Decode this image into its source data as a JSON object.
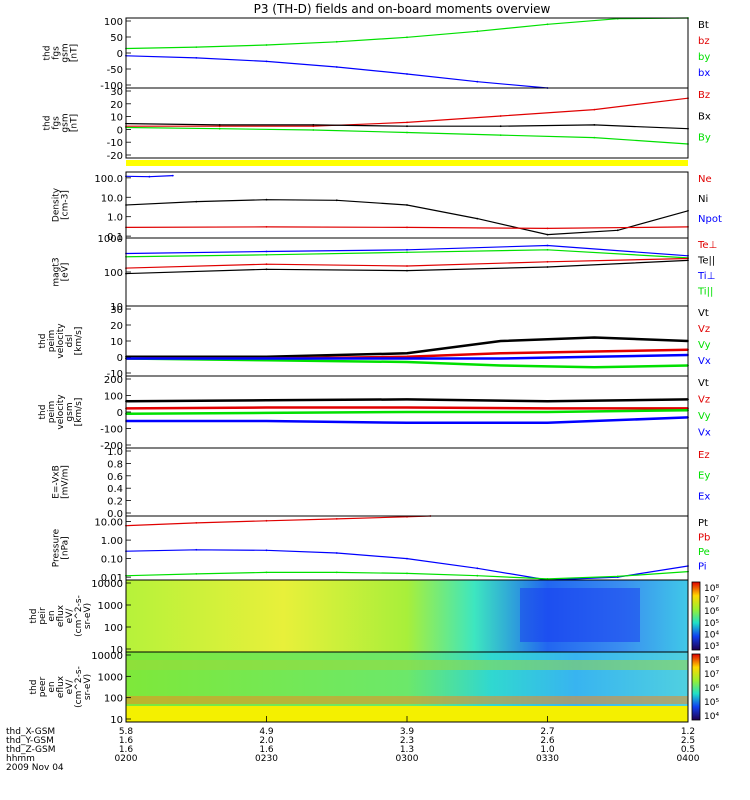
{
  "title": "P3 (TH-D) fields and on-board moments overview",
  "colors": {
    "black": "#000000",
    "red": "#e00000",
    "green": "#00e000",
    "blue": "#0000ff",
    "yellow": "#ffff00"
  },
  "chart_data": [
    {
      "id": "fgs-gse",
      "type": "line",
      "ylabel_lines": [
        "thd",
        "fgs",
        "gsm",
        "[nT]"
      ],
      "ylim": [
        -100,
        100
      ],
      "yticks": [
        "100",
        "50",
        "0",
        "-50",
        "-100"
      ],
      "legend": [
        {
          "label": "Bt",
          "color": "#000000"
        },
        {
          "label": "bz",
          "color": "#e00000"
        },
        {
          "label": "by",
          "color": "#00e000"
        },
        {
          "label": "bx",
          "color": "#0000ff"
        }
      ],
      "series": [
        {
          "name": "by",
          "color": "#00e000",
          "x": [
            "02:00",
            "02:15",
            "02:30",
            "02:45",
            "03:00",
            "03:15",
            "03:30",
            "03:45",
            "04:00"
          ],
          "values": [
            13,
            17,
            23,
            32,
            45,
            62,
            82,
            98,
            104
          ]
        },
        {
          "name": "bx",
          "color": "#0000ff",
          "x": [
            "02:00",
            "02:15",
            "02:30",
            "02:45",
            "03:00",
            "03:15",
            "03:30"
          ],
          "values": [
            -8,
            -14,
            -24,
            -40,
            -60,
            -82,
            -100
          ]
        }
      ]
    },
    {
      "id": "fgs-gsm",
      "type": "line",
      "ylabel_lines": [
        "thd",
        "fgs",
        "gsm",
        "[nT]"
      ],
      "ylim": [
        -25,
        30
      ],
      "yticks": [
        "30",
        "20",
        "10",
        "0",
        "-10",
        "-20"
      ],
      "legend": [
        {
          "label": "Bz",
          "color": "#e00000"
        },
        {
          "label": "Bx",
          "color": "#000000"
        },
        {
          "label": "By",
          "color": "#00e000"
        }
      ],
      "series": [
        {
          "name": "Bz",
          "color": "#e00000",
          "x": [
            "02:00",
            "02:20",
            "02:40",
            "03:00",
            "03:20",
            "03:40",
            "04:00"
          ],
          "values": [
            0,
            0,
            0,
            3,
            8,
            13,
            22
          ]
        },
        {
          "name": "Bx",
          "color": "#000000",
          "x": [
            "02:00",
            "02:20",
            "02:40",
            "03:00",
            "03:20",
            "03:40",
            "04:00"
          ],
          "values": [
            2,
            1,
            1,
            0,
            0,
            1,
            -2
          ]
        },
        {
          "name": "By",
          "color": "#00e000",
          "x": [
            "02:00",
            "02:20",
            "02:40",
            "03:00",
            "03:20",
            "03:40",
            "04:00"
          ],
          "values": [
            -1,
            -2,
            -3,
            -5,
            -7,
            -9,
            -14
          ]
        }
      ]
    },
    {
      "id": "density",
      "type": "line",
      "scale": "log",
      "ylabel_lines": [
        "Density",
        "[cm-3]"
      ],
      "ylim": [
        0.08,
        200
      ],
      "yticks": [
        "100.0",
        "10.0",
        "1.0",
        "0.1"
      ],
      "ytick_values": [
        100,
        10,
        1,
        0.1
      ],
      "legend": [
        {
          "label": "Ne",
          "color": "#e00000"
        },
        {
          "label": "Ni",
          "color": "#000000"
        },
        {
          "label": "Npot",
          "color": "#0000ff"
        }
      ],
      "series": [
        {
          "name": "Ni",
          "color": "#000000",
          "x": [
            "02:00",
            "02:15",
            "02:30",
            "02:45",
            "03:00",
            "03:15",
            "03:30",
            "03:45",
            "04:00"
          ],
          "values": [
            4,
            6,
            7.5,
            7,
            4,
            0.8,
            0.12,
            0.2,
            2
          ]
        },
        {
          "name": "Ne",
          "color": "#e00000",
          "x": [
            "02:00",
            "02:30",
            "03:00",
            "03:30",
            "04:00"
          ],
          "values": [
            0.28,
            0.3,
            0.28,
            0.25,
            0.3
          ]
        },
        {
          "name": "Npot",
          "color": "#0000ff",
          "x": [
            "02:00",
            "02:05",
            "02:10"
          ],
          "values": [
            120,
            115,
            130
          ]
        }
      ]
    },
    {
      "id": "mom-temp",
      "type": "line",
      "scale": "log",
      "ylabel_lines": [
        "magt3",
        "[eV]"
      ],
      "ylim": [
        10,
        1000
      ],
      "yticks": [
        "1000",
        "100",
        "10"
      ],
      "ytick_values": [
        1000,
        100,
        10
      ],
      "legend": [
        {
          "label": "Te⊥",
          "color": "#e00000"
        },
        {
          "label": "Te||",
          "color": "#000000"
        },
        {
          "label": "Ti⊥",
          "color": "#0000ff"
        },
        {
          "label": "Ti||",
          "color": "#00e000"
        }
      ],
      "series": [
        {
          "name": "Ti⊥",
          "color": "#0000ff",
          "x": [
            "02:00",
            "02:30",
            "03:00",
            "03:30",
            "04:00"
          ],
          "values": [
            350,
            400,
            450,
            600,
            300
          ]
        },
        {
          "name": "Ti||",
          "color": "#00e000",
          "x": [
            "02:00",
            "02:30",
            "03:00",
            "03:30",
            "04:00"
          ],
          "values": [
            280,
            320,
            380,
            450,
            260
          ]
        },
        {
          "name": "Te⊥",
          "color": "#e00000",
          "x": [
            "02:00",
            "02:30",
            "03:00",
            "03:30",
            "04:00"
          ],
          "values": [
            130,
            170,
            150,
            200,
            250
          ]
        },
        {
          "name": "Te||",
          "color": "#000000",
          "x": [
            "02:00",
            "02:30",
            "03:00",
            "03:30",
            "04:00"
          ],
          "values": [
            90,
            120,
            110,
            140,
            220
          ]
        }
      ]
    },
    {
      "id": "peim-velocity-dsl",
      "type": "line",
      "ylabel_lines": [
        "thd",
        "peim",
        "velocity",
        "dsl",
        "[km/s]"
      ],
      "ylim": [
        -10,
        30
      ],
      "yticks": [
        "30",
        "20",
        "10",
        "0",
        "-10"
      ],
      "legend": [
        {
          "label": "Vt",
          "color": "#000000"
        },
        {
          "label": "Vz",
          "color": "#e00000"
        },
        {
          "label": "Vy",
          "color": "#00e000"
        },
        {
          "label": "Vx",
          "color": "#0000ff"
        }
      ],
      "series": [
        {
          "name": "Vt",
          "color": "#000000",
          "x": [
            "02:00",
            "02:30",
            "03:00",
            "03:20",
            "03:40",
            "04:00"
          ],
          "values": [
            1,
            1,
            3,
            10,
            12,
            10
          ]
        },
        {
          "name": "Vz",
          "color": "#e00000",
          "x": [
            "02:00",
            "02:30",
            "03:00",
            "03:20",
            "03:40",
            "04:00"
          ],
          "values": [
            0,
            0,
            1,
            3,
            4,
            5
          ]
        },
        {
          "name": "Vy",
          "color": "#00e000",
          "x": [
            "02:00",
            "02:30",
            "03:00",
            "03:20",
            "03:40",
            "04:00"
          ],
          "values": [
            0,
            -1,
            -2,
            -4,
            -5,
            -4
          ]
        },
        {
          "name": "Vx",
          "color": "#0000ff",
          "x": [
            "02:00",
            "02:30",
            "03:00",
            "03:20",
            "03:40",
            "04:00"
          ],
          "values": [
            0,
            0,
            0,
            0,
            1,
            2
          ]
        }
      ]
    },
    {
      "id": "peim-velocity-gsm",
      "type": "line",
      "ylabel_lines": [
        "thd",
        "peim",
        "velocity",
        "gsm",
        "[km/s]"
      ],
      "ylim": [
        -200,
        200
      ],
      "yticks": [
        "200",
        "100",
        "0",
        "-100",
        "-200"
      ],
      "legend": [
        {
          "label": "Vt",
          "color": "#000000"
        },
        {
          "label": "Vz",
          "color": "#e00000"
        },
        {
          "label": "Vy",
          "color": "#00e000"
        },
        {
          "label": "Vx",
          "color": "#0000ff"
        }
      ],
      "series": [
        {
          "name": "Vt",
          "color": "#000000",
          "x": [
            "02:00",
            "02:30",
            "03:00",
            "03:30",
            "04:00"
          ],
          "values": [
            60,
            65,
            70,
            60,
            70
          ]
        },
        {
          "name": "Vz",
          "color": "#e00000",
          "x": [
            "02:00",
            "02:30",
            "03:00",
            "03:30",
            "04:00"
          ],
          "values": [
            20,
            25,
            25,
            20,
            20
          ]
        },
        {
          "name": "Vy",
          "color": "#00e000",
          "x": [
            "02:00",
            "02:30",
            "03:00",
            "03:30",
            "04:00"
          ],
          "values": [
            -10,
            -5,
            0,
            0,
            10
          ]
        },
        {
          "name": "Vx",
          "color": "#0000ff",
          "x": [
            "02:00",
            "02:30",
            "03:00",
            "03:30",
            "04:00"
          ],
          "values": [
            -50,
            -50,
            -60,
            -60,
            -30
          ]
        }
      ]
    },
    {
      "id": "e-vxb",
      "type": "line",
      "ylabel_lines": [
        "E=-VxB",
        "[mV/m]"
      ],
      "ylim": [
        0,
        1
      ],
      "yticks": [
        "1.0",
        "0.8",
        "0.6",
        "0.4",
        "0.2",
        "0.0"
      ],
      "legend": [
        {
          "label": "Ez",
          "color": "#e00000"
        },
        {
          "label": "Ey",
          "color": "#00e000"
        },
        {
          "label": "Ex",
          "color": "#0000ff"
        }
      ],
      "series": []
    },
    {
      "id": "pressure",
      "type": "line",
      "scale": "log",
      "ylabel_lines": [
        "Pressure",
        "[nPa]"
      ],
      "ylim": [
        0.007,
        20
      ],
      "yticks": [
        "10.00",
        "1.00",
        "0.10",
        "0.01"
      ],
      "ytick_values": [
        10,
        1,
        0.1,
        0.01
      ],
      "legend": [
        {
          "label": "Pt",
          "color": "#000000"
        },
        {
          "label": "Pb",
          "color": "#e00000"
        },
        {
          "label": "Pe",
          "color": "#00e000"
        },
        {
          "label": "Pi",
          "color": "#0000ff"
        }
      ],
      "series": [
        {
          "name": "Pb",
          "color": "#e00000",
          "x": [
            "02:00",
            "02:15",
            "02:30",
            "02:45",
            "03:00",
            "03:05"
          ],
          "values": [
            6,
            8.5,
            11,
            14,
            18,
            20
          ]
        },
        {
          "name": "Pi",
          "color": "#0000ff",
          "x": [
            "02:00",
            "02:15",
            "02:30",
            "02:45",
            "03:00",
            "03:15",
            "03:30",
            "03:45",
            "04:00"
          ],
          "values": [
            0.25,
            0.3,
            0.28,
            0.2,
            0.1,
            0.03,
            0.007,
            0.01,
            0.04
          ]
        },
        {
          "name": "Pe",
          "color": "#00e000",
          "x": [
            "02:00",
            "02:15",
            "02:30",
            "02:45",
            "03:00",
            "03:15",
            "03:30",
            "03:45",
            "04:00"
          ],
          "values": [
            0.012,
            0.015,
            0.018,
            0.018,
            0.016,
            0.012,
            0.008,
            0.011,
            0.02
          ]
        }
      ]
    },
    {
      "id": "peir-en-eflux",
      "type": "heatmap",
      "ylabel_lines": [
        "thd",
        "peir",
        "en",
        "eflux",
        "eV/",
        "(cm^2-s-",
        "sr-eV)"
      ],
      "yticks": [
        "10000",
        "1000",
        "100",
        "10"
      ],
      "colorbar_ticks": [
        "10⁸",
        "10⁷",
        "10⁶",
        "10⁵",
        "10⁴",
        "10³"
      ]
    },
    {
      "id": "peer-en-eflux",
      "type": "heatmap",
      "ylabel_lines": [
        "thd",
        "peer",
        "en",
        "eflux",
        "eV/",
        "(cm^2-s-",
        "sr-eV)"
      ],
      "yticks": [
        "10000",
        "1000",
        "100",
        "10"
      ],
      "colorbar_ticks": [
        "10⁸",
        "10⁷",
        "10⁶",
        "10⁵",
        "10⁴"
      ]
    }
  ],
  "x_axis": {
    "row_labels": [
      "thd_X-GSM",
      "thd_Y-GSM",
      "thd_Z-GSM",
      "hhmm",
      "2009 Nov 04"
    ],
    "ticks": [
      {
        "x": "0200",
        "X": "5.8",
        "Y": "1.6",
        "Z": "1.6"
      },
      {
        "x": "0230",
        "X": "4.9",
        "Y": "2.0",
        "Z": "1.6"
      },
      {
        "x": "0300",
        "X": "3.9",
        "Y": "2.3",
        "Z": "1.3"
      },
      {
        "x": "0330",
        "X": "2.7",
        "Y": "2.6",
        "Z": "1.0"
      },
      {
        "x": "0400",
        "X": "1.2",
        "Y": "2.5",
        "Z": "0.5"
      }
    ]
  }
}
